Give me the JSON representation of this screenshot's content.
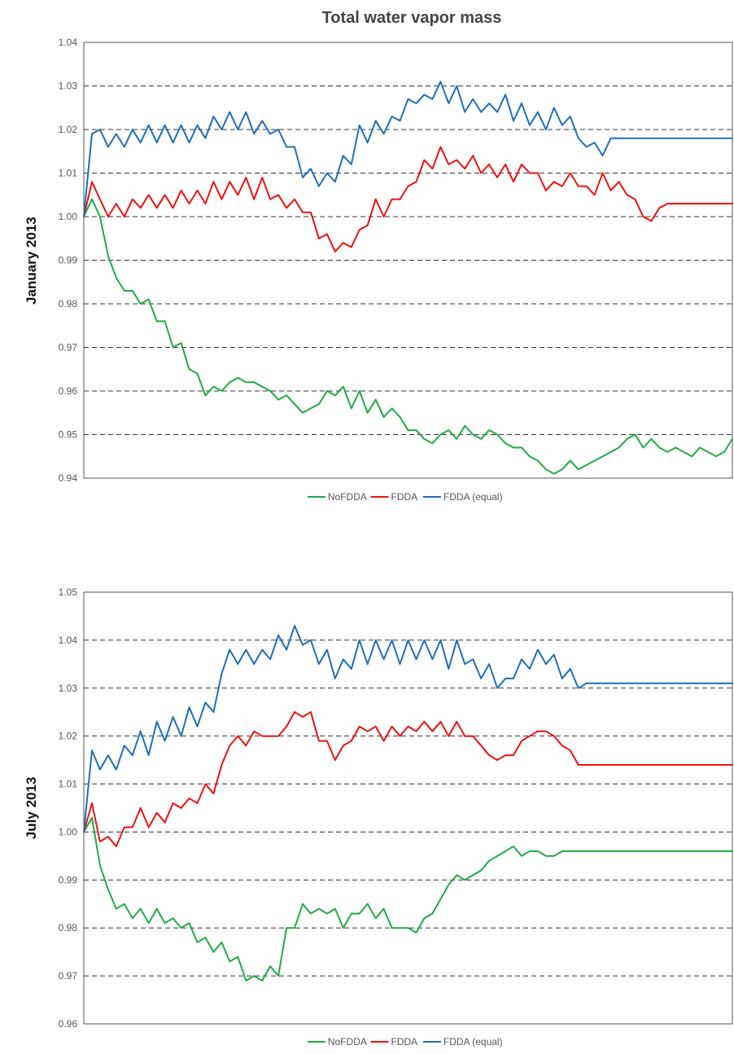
{
  "figure": {
    "title": "Total water vapor mass"
  },
  "colors": {
    "NoFDDA": "#22aa44",
    "FDDA": "#ee1111",
    "FDDA (equal)": "#1f6fb8",
    "grid": "#333333",
    "frame": "#555555"
  },
  "chart_data": [
    {
      "type": "line",
      "row_label": "January 2013",
      "title": "",
      "xlabel": "",
      "ylabel": "",
      "ylim": [
        0.94,
        1.04
      ],
      "yticks": [
        "0.94",
        "0.95",
        "0.96",
        "0.97",
        "0.98",
        "0.99",
        "1.00",
        "1.01",
        "1.02",
        "1.03",
        "1.04"
      ],
      "grid": "horizontal dashed",
      "legend": "bottom-center",
      "x": [
        0,
        1,
        2,
        3,
        4,
        5,
        6,
        7,
        8,
        9,
        10,
        11,
        12,
        13,
        14,
        15,
        16,
        17,
        18,
        19,
        20,
        21,
        22,
        23,
        24,
        25,
        26,
        27,
        28,
        29,
        30,
        31,
        32,
        33,
        34,
        35,
        36,
        37,
        38,
        39,
        40,
        41,
        42,
        43,
        44,
        45,
        46,
        47,
        48,
        49,
        50,
        51,
        52,
        53,
        54,
        55,
        56,
        57,
        58,
        59,
        60,
        61,
        62,
        63,
        64,
        65,
        66,
        67,
        68,
        69,
        70,
        71,
        72,
        73,
        74,
        75,
        76,
        77,
        78,
        79,
        80
      ],
      "series": [
        {
          "name": "NoFDDA",
          "values": [
            1.0,
            1.004,
            1.0,
            0.991,
            0.986,
            0.983,
            0.983,
            0.98,
            0.981,
            0.976,
            0.976,
            0.97,
            0.971,
            0.965,
            0.964,
            0.959,
            0.961,
            0.96,
            0.962,
            0.963,
            0.962,
            0.962,
            0.961,
            0.96,
            0.958,
            0.959,
            0.957,
            0.955,
            0.956,
            0.957,
            0.96,
            0.959,
            0.961,
            0.956,
            0.96,
            0.955,
            0.958,
            0.954,
            0.956,
            0.954,
            0.951,
            0.951,
            0.949,
            0.948,
            0.95,
            0.951,
            0.949,
            0.952,
            0.95,
            0.949,
            0.951,
            0.95,
            0.948,
            0.947,
            0.947,
            0.945,
            0.944,
            0.942,
            0.941,
            0.942,
            0.944,
            0.942,
            0.943,
            0.944,
            0.945,
            0.946,
            0.947,
            0.949,
            0.95,
            0.947,
            0.949,
            0.947,
            0.946,
            0.947,
            0.946,
            0.945,
            0.947,
            0.946,
            0.945,
            0.946,
            0.949
          ]
        },
        {
          "name": "FDDA",
          "values": [
            1.0,
            1.008,
            1.004,
            1.0,
            1.003,
            1.0,
            1.004,
            1.002,
            1.005,
            1.002,
            1.005,
            1.002,
            1.006,
            1.003,
            1.006,
            1.003,
            1.008,
            1.004,
            1.008,
            1.005,
            1.009,
            1.004,
            1.009,
            1.004,
            1.005,
            1.002,
            1.004,
            1.001,
            1.001,
            0.995,
            0.996,
            0.992,
            0.994,
            0.993,
            0.997,
            0.998,
            1.004,
            1.0,
            1.004,
            1.004,
            1.007,
            1.008,
            1.013,
            1.011,
            1.016,
            1.012,
            1.013,
            1.011,
            1.014,
            1.01,
            1.012,
            1.009,
            1.012,
            1.008,
            1.012,
            1.01,
            1.01,
            1.006,
            1.008,
            1.007,
            1.01,
            1.007,
            1.007,
            1.005,
            1.01,
            1.006,
            1.008,
            1.005,
            1.004,
            1.0,
            0.999,
            1.002,
            1.003,
            1.003,
            1.003,
            1.003,
            1.003,
            1.003,
            1.003,
            1.003,
            1.003
          ]
        },
        {
          "name": "FDDA (equal)",
          "values": [
            1.0,
            1.019,
            1.02,
            1.016,
            1.019,
            1.016,
            1.02,
            1.017,
            1.021,
            1.017,
            1.021,
            1.017,
            1.021,
            1.017,
            1.021,
            1.018,
            1.023,
            1.02,
            1.024,
            1.02,
            1.024,
            1.019,
            1.022,
            1.019,
            1.02,
            1.016,
            1.016,
            1.009,
            1.011,
            1.007,
            1.01,
            1.008,
            1.014,
            1.012,
            1.021,
            1.017,
            1.022,
            1.019,
            1.023,
            1.022,
            1.027,
            1.026,
            1.028,
            1.027,
            1.031,
            1.026,
            1.03,
            1.024,
            1.027,
            1.024,
            1.026,
            1.024,
            1.028,
            1.022,
            1.026,
            1.021,
            1.024,
            1.02,
            1.025,
            1.021,
            1.023,
            1.018,
            1.016,
            1.017,
            1.014,
            1.018,
            1.018,
            1.018,
            1.018,
            1.018,
            1.018,
            1.018,
            1.018,
            1.018,
            1.018,
            1.018,
            1.018,
            1.018,
            1.018,
            1.018,
            1.018
          ]
        }
      ]
    },
    {
      "type": "line",
      "row_label": "July 2013",
      "title": "",
      "xlabel": "",
      "ylabel": "",
      "ylim": [
        0.96,
        1.05
      ],
      "yticks": [
        "0.96",
        "0.97",
        "0.98",
        "0.99",
        "1.00",
        "1.01",
        "1.02",
        "1.03",
        "1.04",
        "1.05"
      ],
      "grid": "horizontal dashed",
      "legend": "bottom-center",
      "x": [
        0,
        1,
        2,
        3,
        4,
        5,
        6,
        7,
        8,
        9,
        10,
        11,
        12,
        13,
        14,
        15,
        16,
        17,
        18,
        19,
        20,
        21,
        22,
        23,
        24,
        25,
        26,
        27,
        28,
        29,
        30,
        31,
        32,
        33,
        34,
        35,
        36,
        37,
        38,
        39,
        40,
        41,
        42,
        43,
        44,
        45,
        46,
        47,
        48,
        49,
        50,
        51,
        52,
        53,
        54,
        55,
        56,
        57,
        58,
        59,
        60,
        61,
        62,
        63,
        64,
        65,
        66,
        67,
        68,
        69,
        70,
        71,
        72,
        73,
        74,
        75,
        76,
        77,
        78,
        79,
        80
      ],
      "series": [
        {
          "name": "NoFDDA",
          "values": [
            1.0,
            1.003,
            0.993,
            0.988,
            0.984,
            0.985,
            0.982,
            0.984,
            0.981,
            0.984,
            0.981,
            0.982,
            0.98,
            0.981,
            0.977,
            0.978,
            0.975,
            0.977,
            0.973,
            0.974,
            0.969,
            0.97,
            0.969,
            0.972,
            0.97,
            0.98,
            0.98,
            0.985,
            0.983,
            0.984,
            0.983,
            0.984,
            0.98,
            0.983,
            0.983,
            0.985,
            0.982,
            0.984,
            0.98,
            0.98,
            0.98,
            0.979,
            0.982,
            0.983,
            0.986,
            0.989,
            0.991,
            0.99,
            0.991,
            0.992,
            0.994,
            0.995,
            0.996,
            0.997,
            0.995,
            0.996,
            0.996,
            0.995,
            0.995,
            0.996,
            0.996,
            0.996,
            0.996,
            0.996,
            0.996,
            0.996,
            0.996,
            0.996,
            0.996,
            0.996,
            0.996,
            0.996,
            0.996,
            0.996,
            0.996,
            0.996,
            0.996,
            0.996,
            0.996,
            0.996,
            0.996
          ]
        },
        {
          "name": "FDDA",
          "values": [
            1.0,
            1.006,
            0.998,
            0.999,
            0.997,
            1.001,
            1.001,
            1.005,
            1.001,
            1.004,
            1.002,
            1.006,
            1.005,
            1.007,
            1.006,
            1.01,
            1.008,
            1.014,
            1.018,
            1.02,
            1.018,
            1.021,
            1.02,
            1.02,
            1.02,
            1.022,
            1.025,
            1.024,
            1.025,
            1.019,
            1.019,
            1.015,
            1.018,
            1.019,
            1.022,
            1.021,
            1.022,
            1.019,
            1.022,
            1.02,
            1.022,
            1.021,
            1.023,
            1.021,
            1.023,
            1.02,
            1.023,
            1.02,
            1.02,
            1.018,
            1.016,
            1.015,
            1.016,
            1.016,
            1.019,
            1.02,
            1.021,
            1.021,
            1.02,
            1.018,
            1.017,
            1.014,
            1.014,
            1.014,
            1.014,
            1.014,
            1.014,
            1.014,
            1.014,
            1.014,
            1.014,
            1.014,
            1.014,
            1.014,
            1.014,
            1.014,
            1.014,
            1.014,
            1.014,
            1.014,
            1.014
          ]
        },
        {
          "name": "FDDA (equal)",
          "values": [
            1.0,
            1.017,
            1.013,
            1.016,
            1.013,
            1.018,
            1.016,
            1.021,
            1.016,
            1.023,
            1.019,
            1.024,
            1.02,
            1.026,
            1.022,
            1.027,
            1.025,
            1.033,
            1.038,
            1.035,
            1.038,
            1.035,
            1.038,
            1.036,
            1.041,
            1.038,
            1.043,
            1.039,
            1.04,
            1.035,
            1.038,
            1.032,
            1.036,
            1.034,
            1.04,
            1.035,
            1.04,
            1.036,
            1.04,
            1.035,
            1.04,
            1.036,
            1.04,
            1.036,
            1.04,
            1.034,
            1.04,
            1.035,
            1.036,
            1.032,
            1.035,
            1.03,
            1.032,
            1.032,
            1.036,
            1.034,
            1.038,
            1.035,
            1.037,
            1.032,
            1.034,
            1.03,
            1.031,
            1.031,
            1.031,
            1.031,
            1.031,
            1.031,
            1.031,
            1.031,
            1.031,
            1.031,
            1.031,
            1.031,
            1.031,
            1.031,
            1.031,
            1.031,
            1.031,
            1.031,
            1.031
          ]
        }
      ]
    }
  ]
}
